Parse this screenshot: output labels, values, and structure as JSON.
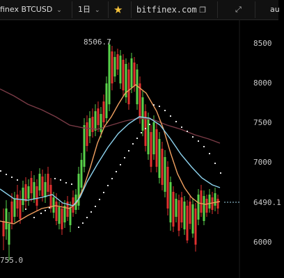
{
  "toolbar": {
    "symbol": "finex BTCUSD",
    "interval": "1日",
    "favorite_icon": "star-icon",
    "site": "bitfinex.com",
    "external_icon": "external-link-icon",
    "fullscreen_icon": "expand-icon",
    "account": "au"
  },
  "chart": {
    "y_ticks": [
      "8500",
      "8000",
      "7500",
      "7000",
      "6490.1",
      "6000"
    ],
    "last_price": "6490.1",
    "high_label": "8506.7",
    "low_label": "755.0",
    "colors": {
      "up": "#59d14a",
      "down": "#e0312f",
      "orange_ma": "#f0a060",
      "blue_ma": "#8ed4f0",
      "brown_ma": "#7a3b46",
      "dots": "#e8e8e8"
    }
  }
}
